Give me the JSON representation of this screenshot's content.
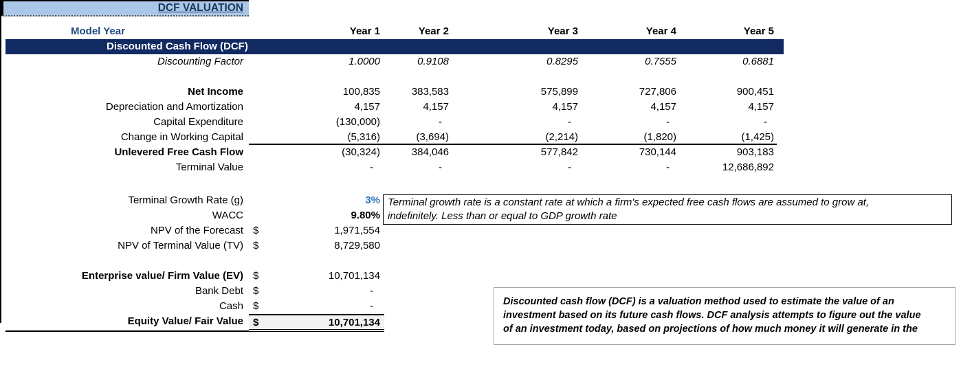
{
  "title": "DCF VALUATION",
  "colors": {
    "title_bg": "#abc7e8",
    "banner_bg": "#112a61",
    "header_text_blue": "#1f497d",
    "input_value_blue": "#2e75b6",
    "equity_cell_bg": "#f2f2f2",
    "note_border_gray": "#a6a6a6"
  },
  "header": {
    "model_year": "Model Year",
    "years": [
      "Year 1",
      "Year 2",
      "Year 3",
      "Year 4",
      "Year 5"
    ]
  },
  "banner": {
    "label": "Discounted Cash Flow (DCF)"
  },
  "cashflow": {
    "rows": [
      {
        "label": "Discounting Factor",
        "values": [
          "1.0000",
          "0.9108",
          "0.8295",
          "0.7555",
          "0.6881"
        ]
      },
      {
        "label": "Net Income",
        "values": [
          "100,835",
          "383,583",
          "575,899",
          "727,806",
          "900,451"
        ]
      },
      {
        "label": "Depreciation and Amortization",
        "values": [
          "4,157",
          "4,157",
          "4,157",
          "4,157",
          "4,157"
        ]
      },
      {
        "label": "Capital Expenditure",
        "values": [
          "(130,000)",
          "-",
          "-",
          "-",
          "-"
        ]
      },
      {
        "label": "Change in Working Capital",
        "values": [
          "(5,316)",
          "(3,694)",
          "(2,214)",
          "(1,820)",
          "(1,425)"
        ]
      },
      {
        "label": "Unlevered Free Cash Flow",
        "values": [
          "(30,324)",
          "384,046",
          "577,842",
          "730,144",
          "903,183"
        ]
      },
      {
        "label": "Terminal Value",
        "values": [
          "-",
          "-",
          "-",
          "-",
          "12,686,892"
        ]
      }
    ]
  },
  "summary": {
    "rows": [
      {
        "label": "Terminal Growth Rate (g)",
        "dollar": "",
        "value": "3%"
      },
      {
        "label": "WACC",
        "dollar": "",
        "value": "9.80%"
      },
      {
        "label": "NPV of the Forecast",
        "dollar": "$",
        "value": "1,971,554"
      },
      {
        "label": "NPV of Terminal Value (TV)",
        "dollar": "$",
        "value": "8,729,580"
      },
      {
        "label": "Enterprise value/ Firm Value (EV)",
        "dollar": "$",
        "value": "10,701,134"
      },
      {
        "label": "Bank Debt",
        "dollar": "$",
        "value": "-"
      },
      {
        "label": "Cash",
        "dollar": "$",
        "value": "-"
      },
      {
        "label": "Equity Value/ Fair Value",
        "dollar": "$",
        "value": "10,701,134"
      }
    ]
  },
  "notes": {
    "terminal": {
      "line1": "Terminal growth rate is a constant rate at which a firm's expected free cash flows are assumed to grow at,",
      "line2": "indefinitely. Less than or equal to GDP growth rate"
    },
    "dcf": {
      "line1": "Discounted cash flow (DCF) is a valuation method used to estimate the value of an",
      "line2": "investment based on its future cash flows. DCF analysis attempts to figure out the value",
      "line3": "of an investment today, based on projections of how much money it will generate in the"
    }
  }
}
